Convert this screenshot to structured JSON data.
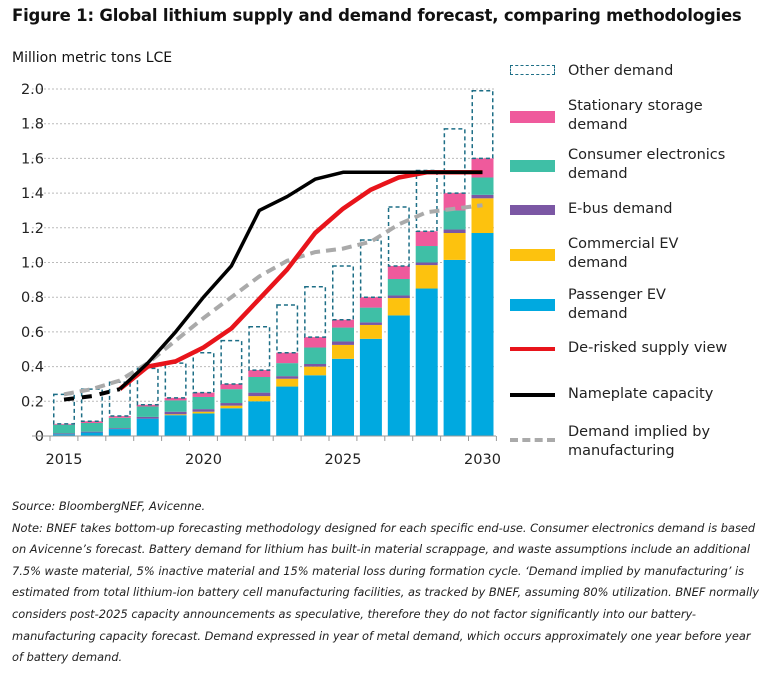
{
  "title": "Figure 1: Global lithium supply and demand forecast, comparing methodologies",
  "chart_data": {
    "type": "bar+line",
    "stacked": true,
    "ylabel": "Million metric tons LCE",
    "ylim": [
      0,
      2.0
    ],
    "yticks": [
      "0",
      "0.2",
      "0.4",
      "0.6",
      "0.8",
      "1.0",
      "1.2",
      "1.4",
      "1.6",
      "1.8",
      "2.0"
    ],
    "xticks": [
      "2015",
      "2020",
      "2025",
      "2030"
    ],
    "grid": true,
    "legend": "right",
    "x": [
      2015,
      2016,
      2017,
      2018,
      2019,
      2020,
      2021,
      2022,
      2023,
      2024,
      2025,
      2026,
      2027,
      2028,
      2029,
      2030
    ],
    "bar_series": [
      {
        "name": "Passenger EV demand",
        "color": "#00a9e0",
        "values": [
          0.01,
          0.02,
          0.04,
          0.1,
          0.12,
          0.13,
          0.16,
          0.2,
          0.285,
          0.35,
          0.445,
          0.56,
          0.695,
          0.85,
          1.015,
          1.17
        ]
      },
      {
        "name": "Commercial EV demand",
        "color": "#fdc20e",
        "values": [
          0,
          0,
          0,
          0,
          0.005,
          0.01,
          0.015,
          0.03,
          0.045,
          0.05,
          0.08,
          0.08,
          0.1,
          0.135,
          0.155,
          0.2
        ]
      },
      {
        "name": "E-bus demand",
        "color": "#7b57a4",
        "values": [
          0.005,
          0.005,
          0.005,
          0.01,
          0.015,
          0.015,
          0.015,
          0.02,
          0.015,
          0.015,
          0.02,
          0.015,
          0.015,
          0.015,
          0.02,
          0.02
        ]
      },
      {
        "name": "Consumer electronics demand",
        "color": "#3fbfa6",
        "values": [
          0.05,
          0.05,
          0.06,
          0.06,
          0.065,
          0.07,
          0.08,
          0.09,
          0.075,
          0.095,
          0.08,
          0.085,
          0.095,
          0.095,
          0.11,
          0.1
        ]
      },
      {
        "name": "Stationary storage demand",
        "color": "#ef5a9c",
        "values": [
          0.005,
          0.01,
          0.01,
          0.01,
          0.015,
          0.025,
          0.03,
          0.04,
          0.06,
          0.06,
          0.045,
          0.06,
          0.075,
          0.085,
          0.1,
          0.11
        ]
      },
      {
        "name": "Other demand",
        "color": "#1d6e86",
        "style": "dashed-outline",
        "values": [
          0.17,
          0.185,
          0.195,
          0.21,
          0.2,
          0.23,
          0.25,
          0.25,
          0.275,
          0.29,
          0.31,
          0.33,
          0.34,
          0.35,
          0.37,
          0.39
        ]
      }
    ],
    "line_series": [
      {
        "name": "De-risked supply view",
        "color": "#e8141b",
        "style": "solid",
        "x": [
          2017,
          2018,
          2019,
          2020,
          2021,
          2022,
          2023,
          2024,
          2025,
          2026,
          2027,
          2028,
          2029,
          2030
        ],
        "values": [
          0.27,
          0.4,
          0.43,
          0.51,
          0.62,
          0.79,
          0.96,
          1.17,
          1.31,
          1.42,
          1.49,
          1.52,
          1.52,
          1.52
        ]
      },
      {
        "name": "Nameplate capacity",
        "color": "#000000",
        "style": "solid",
        "x": [
          2015,
          2016,
          2017,
          2018,
          2019,
          2020,
          2021,
          2022,
          2023,
          2024,
          2025,
          2026,
          2027,
          2028,
          2029,
          2030
        ],
        "values": [
          0.21,
          0.23,
          0.27,
          0.42,
          0.6,
          0.8,
          0.98,
          1.3,
          1.38,
          1.48,
          1.52,
          1.52,
          1.52,
          1.52,
          1.52,
          1.52
        ],
        "dashed_until": 2017
      },
      {
        "name": "Demand implied by manufacturing",
        "color": "#aaaaaa",
        "style": "dashed",
        "x": [
          2015,
          2016,
          2017,
          2018,
          2019,
          2020,
          2021,
          2022,
          2023,
          2024,
          2025,
          2026,
          2027,
          2028,
          2029,
          2030
        ],
        "values": [
          0.24,
          0.27,
          0.32,
          0.42,
          0.55,
          0.68,
          0.8,
          0.92,
          1.01,
          1.06,
          1.08,
          1.12,
          1.22,
          1.29,
          1.31,
          1.33
        ]
      }
    ],
    "legend_labels": {
      "other": "Other demand",
      "stationary": [
        "Stationary storage",
        "demand"
      ],
      "consumer": [
        "Consumer electronics",
        "demand"
      ],
      "ebus": "E-bus demand",
      "commercial": [
        "Commercial EV",
        "demand"
      ],
      "passenger": [
        "Passenger EV",
        "demand"
      ],
      "derisked": "De-risked supply view",
      "nameplate": "Nameplate capacity",
      "implied": [
        "Demand implied by",
        "manufacturing"
      ]
    }
  },
  "source": "Source: BloombergNEF,  Avicenne.",
  "note": "Note: BNEF takes bottom-up forecasting methodology designed for each specific end-use. Consumer electronics demand is based on Avicenne’s forecast. Battery demand for lithium has built-in material scrappage, and waste assumptions include an additional 7.5% waste material, 5% inactive material and 15% material loss during formation cycle. ‘Demand implied by manufacturing’ is estimated from total lithium-ion battery cell manufacturing facilities, as tracked by BNEF, assuming 80% utilization. BNEF normally considers post-2025 capacity announcements as speculative, therefore they do not factor significantly into our battery-manufacturing capacity forecast. Demand expressed in year of metal demand, which occurs approximately one year before year of battery demand."
}
